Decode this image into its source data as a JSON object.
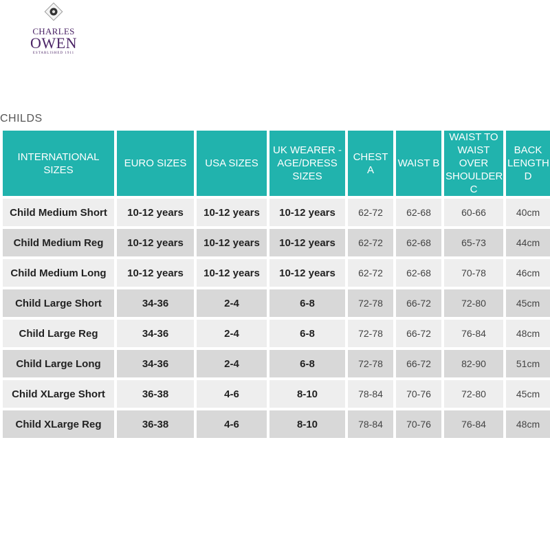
{
  "brand": {
    "line1": "CHARLES",
    "line2": "OWEN",
    "line3": "ESTABLISHED 1911",
    "colors": {
      "brand": "#4b2466",
      "accent": "#21b3ad"
    }
  },
  "section_title": "CHILDS",
  "table": {
    "headers": [
      "INTERNATIONAL SIZES",
      "EURO SIZES",
      "USA SIZES",
      "UK WEARER - AGE/DRESS SIZES",
      "CHEST A",
      "WAIST B",
      "WAIST TO WAIST OVER SHOULDER C",
      "BACK LENGTH D"
    ],
    "rows": [
      [
        "Child Medium Short",
        "10-12 years",
        "10-12 years",
        "10-12 years",
        "62-72",
        "62-68",
        "60-66",
        "40cm"
      ],
      [
        "Child Medium Reg",
        "10-12 years",
        "10-12 years",
        "10-12 years",
        "62-72",
        "62-68",
        "65-73",
        "44cm"
      ],
      [
        "Child Medium Long",
        "10-12 years",
        "10-12 years",
        "10-12 years",
        "62-72",
        "62-68",
        "70-78",
        "46cm"
      ],
      [
        "Child Large Short",
        "34-36",
        "2-4",
        "6-8",
        "72-78",
        "66-72",
        "72-80",
        "45cm"
      ],
      [
        "Child Large Reg",
        "34-36",
        "2-4",
        "6-8",
        "72-78",
        "66-72",
        "76-84",
        "48cm"
      ],
      [
        "Child Large Long",
        "34-36",
        "2-4",
        "6-8",
        "72-78",
        "66-72",
        "82-90",
        "51cm"
      ],
      [
        "Child XLarge Short",
        "36-38",
        "4-6",
        "8-10",
        "78-84",
        "70-76",
        "72-80",
        "45cm"
      ],
      [
        "Child XLarge Reg",
        "36-38",
        "4-6",
        "8-10",
        "78-84",
        "70-76",
        "76-84",
        "48cm"
      ]
    ]
  }
}
